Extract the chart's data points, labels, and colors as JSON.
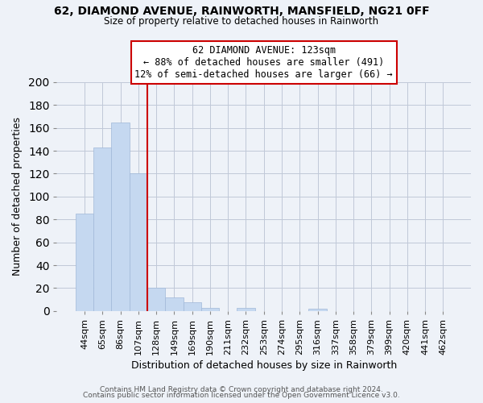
{
  "title": "62, DIAMOND AVENUE, RAINWORTH, MANSFIELD, NG21 0FF",
  "subtitle": "Size of property relative to detached houses in Rainworth",
  "xlabel": "Distribution of detached houses by size in Rainworth",
  "ylabel": "Number of detached properties",
  "bar_labels": [
    "44sqm",
    "65sqm",
    "86sqm",
    "107sqm",
    "128sqm",
    "149sqm",
    "169sqm",
    "190sqm",
    "211sqm",
    "232sqm",
    "253sqm",
    "274sqm",
    "295sqm",
    "316sqm",
    "337sqm",
    "358sqm",
    "379sqm",
    "399sqm",
    "420sqm",
    "441sqm",
    "462sqm"
  ],
  "bar_values": [
    85,
    143,
    165,
    120,
    20,
    12,
    8,
    3,
    0,
    3,
    0,
    0,
    0,
    2,
    0,
    0,
    0,
    0,
    0,
    0,
    0
  ],
  "bar_color": "#c5d8f0",
  "bar_edge_color": "#a0b8d8",
  "grid_color": "#c0c8d8",
  "background_color": "#eef2f8",
  "vline_color": "#cc0000",
  "annotation_line1": "62 DIAMOND AVENUE: 123sqm",
  "annotation_line2": "← 88% of detached houses are smaller (491)",
  "annotation_line3": "12% of semi-detached houses are larger (66) →",
  "annotation_box_color": "#ffffff",
  "annotation_box_edge": "#cc0000",
  "ylim": [
    0,
    200
  ],
  "yticks": [
    0,
    20,
    40,
    60,
    80,
    100,
    120,
    140,
    160,
    180,
    200
  ],
  "footer_line1": "Contains HM Land Registry data © Crown copyright and database right 2024.",
  "footer_line2": "Contains public sector information licensed under the Open Government Licence v3.0."
}
